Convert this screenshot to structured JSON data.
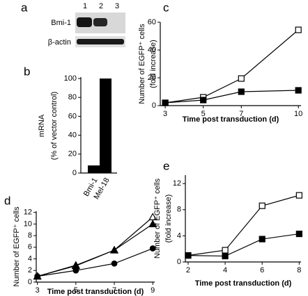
{
  "blot": {
    "label": "a",
    "lanes": [
      "1",
      "2",
      "3"
    ],
    "rows": [
      "Bmi-1",
      "β-actin"
    ]
  },
  "chart_data": [
    {
      "type": "bar",
      "label": "b",
      "ylabel": [
        "mRNA",
        "(% of vector control)"
      ],
      "categories": [
        "Bmi-1",
        "Mel-18"
      ],
      "values": [
        8,
        100
      ],
      "color": "#000000",
      "ylim": [
        0,
        100
      ],
      "yticks": [
        0,
        20,
        40,
        60,
        80,
        100
      ]
    },
    {
      "type": "line",
      "label": "c",
      "ylabel": [
        "Number of EGFP⁺ cells",
        "(fold increase)"
      ],
      "xlabel": "Time post transduction (d)",
      "x": [
        3,
        5,
        7,
        10
      ],
      "series": [
        {
          "marker": "open-square",
          "color": "#000000",
          "values": [
            2,
            6,
            19.5,
            54.5
          ]
        },
        {
          "marker": "filled-square",
          "color": "#000000",
          "values": [
            2,
            4,
            10,
            11
          ]
        }
      ],
      "xlim": [
        2.74,
        10.14
      ],
      "xticks": [
        3,
        5,
        7,
        10
      ],
      "ylim": [
        0,
        60
      ],
      "yticks": [
        0,
        20,
        40,
        60
      ]
    },
    {
      "type": "line",
      "label": "d",
      "ylabel": [
        "Number of EGFP⁺ cells"
      ],
      "xlabel": "Time post transduction (d)",
      "x": [
        3,
        5,
        7,
        9
      ],
      "series": [
        {
          "marker": "open-triangle",
          "color": "#000000",
          "values": [
            1,
            2.8,
            5.5,
            11.2
          ]
        },
        {
          "marker": "filled-triangle",
          "color": "#000000",
          "values": [
            1,
            2.9,
            5.5,
            10
          ]
        },
        {
          "marker": "filled-circle",
          "color": "#000000",
          "values": [
            1,
            2,
            3.2,
            5.8
          ]
        }
      ],
      "xlim": [
        2.94,
        9.1
      ],
      "xticks": [
        3,
        5,
        7,
        9
      ],
      "ylim": [
        0,
        12.2
      ],
      "yticks": [
        0,
        2,
        4,
        6,
        8,
        10,
        12
      ]
    },
    {
      "type": "line",
      "label": "e",
      "ylabel": [
        "Number of EGFP⁺ cells",
        "(fold increase)"
      ],
      "xlabel": "Time post transduction (d)",
      "x": [
        2,
        4,
        6,
        8
      ],
      "series": [
        {
          "marker": "open-square",
          "color": "#000000",
          "values": [
            1,
            1.8,
            8.6,
            10.2
          ]
        },
        {
          "marker": "filled-square",
          "color": "#000000",
          "values": [
            1,
            0.9,
            3.5,
            4.3
          ]
        }
      ],
      "xlim": [
        1.85,
        8.1
      ],
      "xticks": [
        2,
        4,
        6,
        8
      ],
      "ylim": [
        0,
        13.3
      ],
      "yticks": [
        0,
        4,
        8,
        12
      ]
    }
  ]
}
